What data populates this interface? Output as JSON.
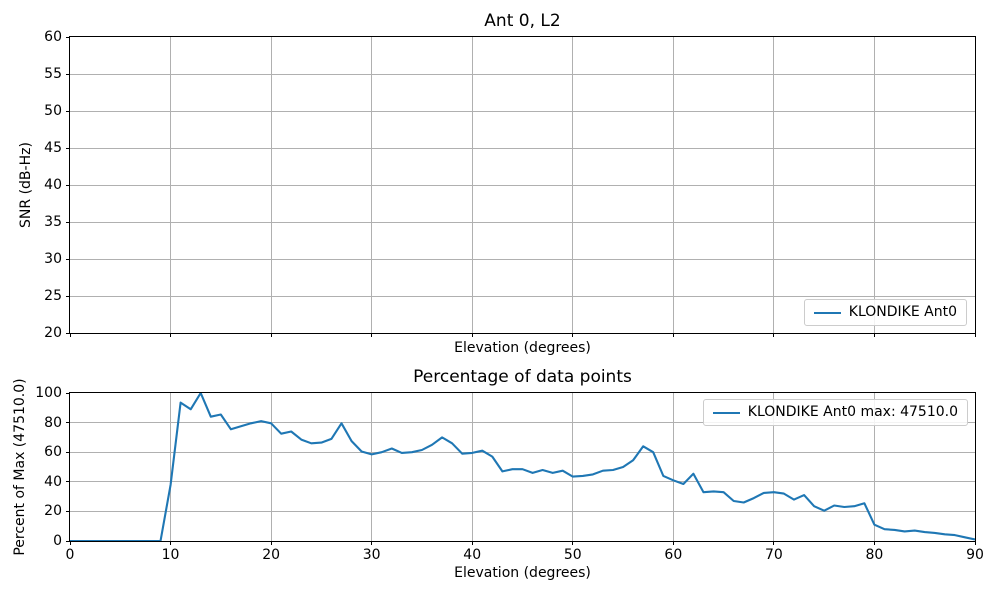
{
  "colors": {
    "line": "#1f77b4",
    "grid": "#b0b0b0",
    "spine": "#000000",
    "legend_border": "#cccccc"
  },
  "chart_data": [
    {
      "type": "line",
      "title": "Ant 0, L2",
      "xlabel": "Elevation (degrees)",
      "ylabel": "SNR (dB-Hz)",
      "xlim": [
        0,
        90
      ],
      "ylim": [
        20,
        60
      ],
      "xticks": [
        0,
        10,
        20,
        30,
        40,
        50,
        60,
        70,
        80,
        90
      ],
      "yticks": [
        20,
        25,
        30,
        35,
        40,
        45,
        50,
        55,
        60
      ],
      "xticklabels_visible": false,
      "grid": true,
      "legend": {
        "position": "lower right",
        "entries": [
          "KLONDIKE Ant0"
        ],
        "line_color": "#1f77b4"
      },
      "series": []
    },
    {
      "type": "line",
      "title": "Percentage of data points",
      "xlabel": "Elevation (degrees)",
      "ylabel": "Percent of Max (47510.0)",
      "xlim": [
        0,
        90
      ],
      "ylim": [
        0,
        100
      ],
      "xticks": [
        0,
        10,
        20,
        30,
        40,
        50,
        60,
        70,
        80,
        90
      ],
      "yticks": [
        0,
        20,
        40,
        60,
        80,
        100
      ],
      "xticklabels_visible": true,
      "grid": true,
      "legend": {
        "position": "upper right",
        "entries": [
          "KLONDIKE Ant0 max: 47510.0"
        ],
        "line_color": "#1f77b4"
      },
      "max_value": 47510.0,
      "series": [
        {
          "name": "KLONDIKE Ant0 max: 47510.0",
          "color": "#1f77b4",
          "x": [
            0,
            1,
            2,
            3,
            4,
            5,
            6,
            7,
            8,
            9,
            10,
            11,
            12,
            13,
            14,
            15,
            16,
            17,
            18,
            19,
            20,
            21,
            22,
            23,
            24,
            25,
            26,
            27,
            28,
            29,
            30,
            31,
            32,
            33,
            34,
            35,
            36,
            37,
            38,
            39,
            40,
            41,
            42,
            43,
            44,
            45,
            46,
            47,
            48,
            49,
            50,
            51,
            52,
            53,
            54,
            55,
            56,
            57,
            58,
            59,
            60,
            61,
            62,
            63,
            64,
            65,
            66,
            67,
            68,
            69,
            70,
            71,
            72,
            73,
            74,
            75,
            76,
            77,
            78,
            79,
            80,
            81,
            82,
            83,
            84,
            85,
            86,
            87,
            88,
            89,
            90
          ],
          "values": [
            0,
            0,
            0,
            0,
            0,
            0,
            0,
            0,
            0,
            0,
            38,
            93.5,
            89,
            100,
            84,
            85.5,
            75.5,
            77.5,
            79.5,
            81,
            79.5,
            72.5,
            74,
            68.5,
            66,
            66.5,
            69,
            79.5,
            67.5,
            60.5,
            58.5,
            60,
            62.5,
            59.5,
            60,
            61.5,
            65,
            70,
            66,
            59,
            59.5,
            61,
            57,
            47,
            48.5,
            48.5,
            46,
            48,
            46,
            47.5,
            43.5,
            44,
            45,
            47.5,
            48,
            50,
            54.5,
            64,
            60,
            44,
            41,
            38.5,
            45.5,
            33,
            33.5,
            33,
            27,
            26,
            29,
            32.5,
            33,
            32,
            28,
            31,
            23.5,
            20.5,
            24,
            23,
            23.5,
            25.5,
            11,
            8,
            7.5,
            6.5,
            7,
            6,
            5.5,
            4.5,
            4,
            2.5,
            1
          ]
        }
      ]
    }
  ]
}
